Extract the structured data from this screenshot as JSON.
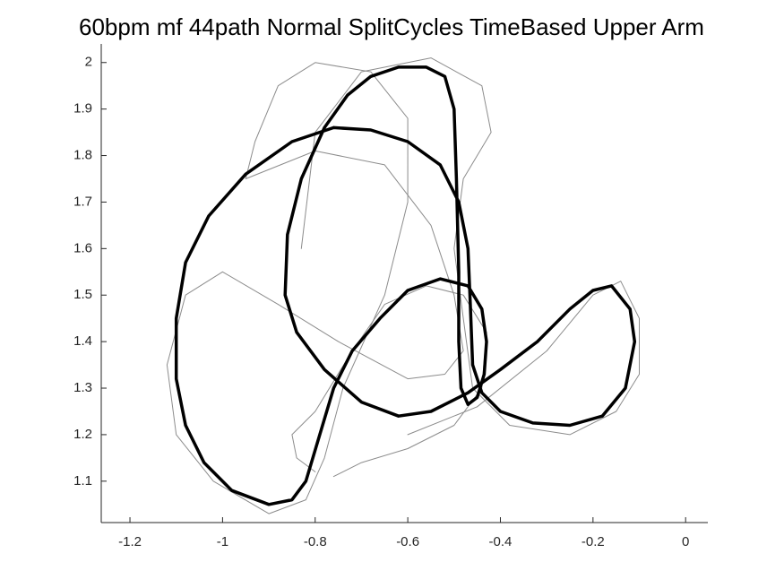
{
  "chart_data": {
    "type": "line",
    "title": "60bpm mf 44path Normal SplitCycles TimeBased Upper Arm",
    "xlim": [
      -1.262,
      0.048
    ],
    "ylim": [
      1.011,
      2.04
    ],
    "xticks": [
      -1.2,
      -1,
      -0.8,
      -0.6,
      -0.4,
      -0.2,
      0
    ],
    "yticks": [
      1.1,
      1.2,
      1.3,
      1.4,
      1.5,
      1.6,
      1.7,
      1.8,
      1.9,
      2
    ],
    "series": [
      {
        "color": "#8c8c8c",
        "width": 1,
        "x": [
          -0.95,
          -0.8,
          -0.65,
          -0.55,
          -0.5,
          -0.48,
          -0.52,
          -0.6,
          -0.75,
          -0.88,
          -1.0,
          -1.08,
          -1.12,
          -1.1,
          -1.02,
          -0.9,
          -0.82,
          -0.78,
          -0.74,
          -0.65,
          -0.6,
          -0.6,
          -0.68,
          -0.8,
          -0.88,
          -0.93,
          -0.95
        ],
        "values": [
          1.75,
          1.81,
          1.78,
          1.65,
          1.5,
          1.38,
          1.33,
          1.32,
          1.4,
          1.48,
          1.55,
          1.5,
          1.35,
          1.2,
          1.1,
          1.03,
          1.06,
          1.15,
          1.3,
          1.5,
          1.7,
          1.88,
          1.98,
          2.0,
          1.95,
          1.83,
          1.75
        ]
      },
      {
        "color": "#8c8c8c",
        "width": 1,
        "x": [
          -0.6,
          -0.45,
          -0.3,
          -0.2,
          -0.14,
          -0.1,
          -0.1,
          -0.15,
          -0.25,
          -0.38,
          -0.46,
          -0.48,
          -0.5,
          -0.48,
          -0.42,
          -0.44,
          -0.55,
          -0.7,
          -0.8,
          -0.83
        ],
        "values": [
          1.2,
          1.26,
          1.38,
          1.5,
          1.53,
          1.45,
          1.33,
          1.25,
          1.2,
          1.22,
          1.3,
          1.45,
          1.6,
          1.75,
          1.85,
          1.95,
          2.01,
          1.98,
          1.85,
          1.6
        ]
      },
      {
        "color": "#8c8c8c",
        "width": 1,
        "x": [
          -0.76,
          -0.7,
          -0.6,
          -0.5,
          -0.44,
          -0.43,
          -0.48,
          -0.56,
          -0.65,
          -0.72,
          -0.8,
          -0.85,
          -0.84,
          -0.8
        ],
        "values": [
          1.11,
          1.14,
          1.17,
          1.22,
          1.3,
          1.42,
          1.5,
          1.52,
          1.48,
          1.38,
          1.25,
          1.2,
          1.15,
          1.12
        ]
      },
      {
        "color": "#000000",
        "width": 3.5,
        "x": [
          -0.76,
          -0.85,
          -0.95,
          -1.03,
          -1.08,
          -1.1,
          -1.1,
          -1.08,
          -1.04,
          -0.98,
          -0.9,
          -0.85,
          -0.82,
          -0.79,
          -0.76,
          -0.72,
          -0.66,
          -0.6,
          -0.53,
          -0.47,
          -0.44,
          -0.43,
          -0.435,
          -0.45,
          -0.47,
          -0.485,
          -0.49,
          -0.49,
          -0.495,
          -0.5,
          -0.52,
          -0.56,
          -0.62,
          -0.68,
          -0.73,
          -0.78,
          -0.83,
          -0.86,
          -0.865,
          -0.84,
          -0.78,
          -0.7,
          -0.62,
          -0.55,
          -0.47,
          -0.4,
          -0.32,
          -0.25,
          -0.2,
          -0.16,
          -0.12,
          -0.11,
          -0.13,
          -0.18,
          -0.25,
          -0.33,
          -0.4,
          -0.44,
          -0.46,
          -0.465,
          -0.47,
          -0.49,
          -0.53,
          -0.6,
          -0.68,
          -0.76
        ],
        "values": [
          1.86,
          1.83,
          1.76,
          1.67,
          1.57,
          1.45,
          1.32,
          1.22,
          1.14,
          1.08,
          1.05,
          1.06,
          1.1,
          1.2,
          1.3,
          1.38,
          1.45,
          1.51,
          1.535,
          1.52,
          1.47,
          1.4,
          1.33,
          1.28,
          1.265,
          1.3,
          1.4,
          1.55,
          1.75,
          1.9,
          1.97,
          1.99,
          1.99,
          1.97,
          1.93,
          1.86,
          1.75,
          1.63,
          1.5,
          1.42,
          1.34,
          1.27,
          1.24,
          1.25,
          1.29,
          1.34,
          1.4,
          1.47,
          1.51,
          1.52,
          1.47,
          1.4,
          1.3,
          1.24,
          1.22,
          1.225,
          1.25,
          1.29,
          1.35,
          1.48,
          1.6,
          1.7,
          1.78,
          1.83,
          1.855,
          1.86
        ]
      }
    ]
  }
}
